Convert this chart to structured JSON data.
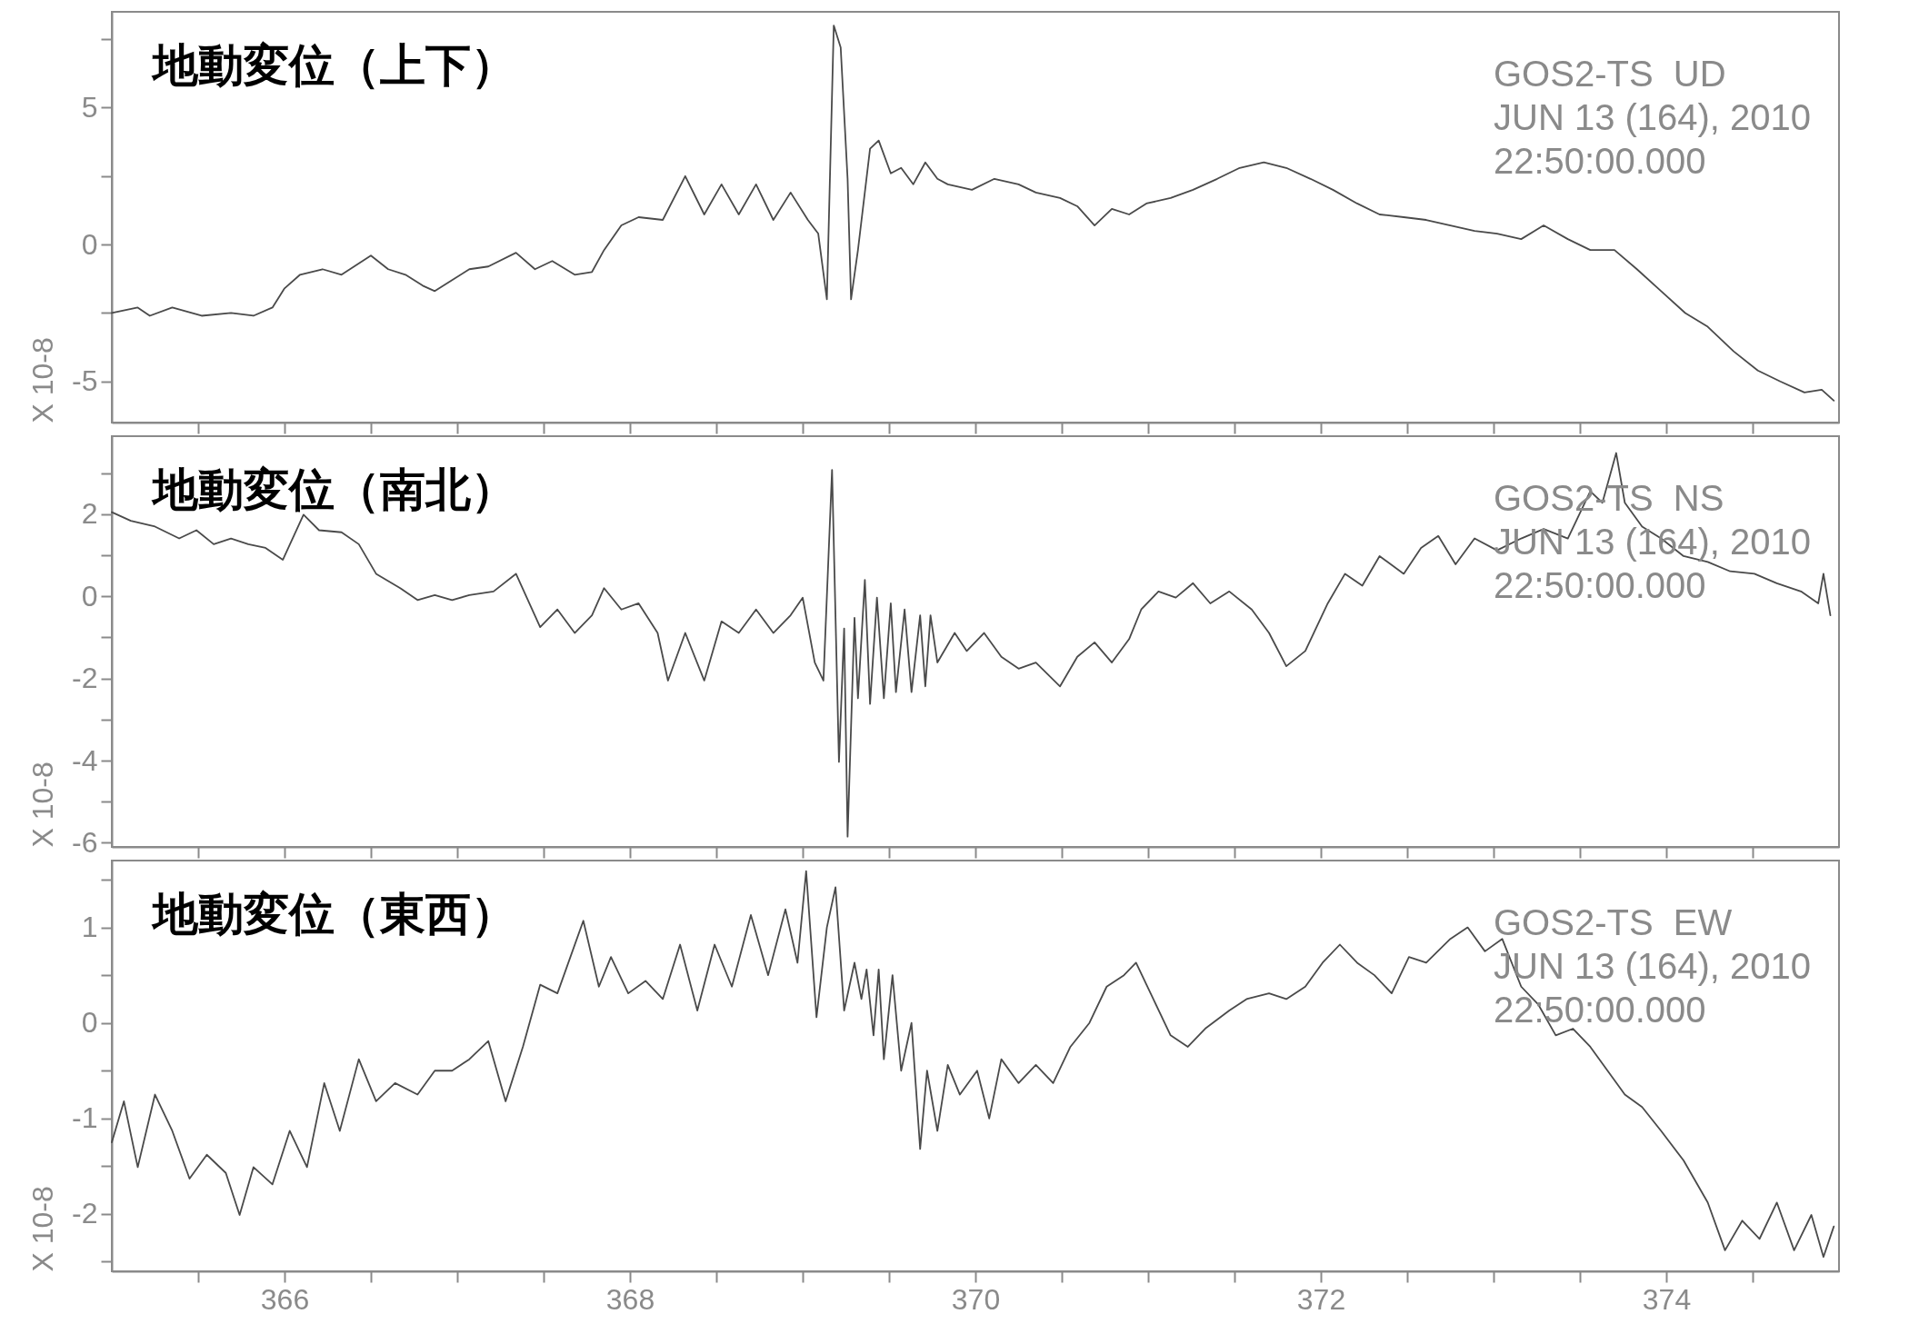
{
  "chart_data": [
    {
      "type": "line",
      "title": "地動変位（上下）",
      "ylabel": "X 10-8",
      "annotations": [
        "GOS2-TS  UD",
        "JUN 13 (164), 2010",
        "22:50:00.000"
      ],
      "xlim": [
        365,
        375
      ],
      "xticks": [
        {
          "value": 365.5,
          "label": null
        },
        366,
        {
          "value": 366.5,
          "label": null
        },
        {
          "value": 367,
          "label": null
        },
        {
          "value": 367.5,
          "label": null
        },
        368,
        {
          "value": 368.5,
          "label": null
        },
        {
          "value": 369,
          "label": null
        },
        {
          "value": 369.5,
          "label": null
        },
        370,
        {
          "value": 370.5,
          "label": null
        },
        {
          "value": 371,
          "label": null
        },
        {
          "value": 371.5,
          "label": null
        },
        372,
        {
          "value": 372.5,
          "label": null
        },
        {
          "value": 373,
          "label": null
        },
        {
          "value": 373.5,
          "label": null
        },
        374,
        {
          "value": 374.5,
          "label": null
        }
      ],
      "ylim": [
        -6.5,
        8.5
      ],
      "yticks": [
        -5,
        {
          "value": -2.5,
          "label": null
        },
        0,
        {
          "value": 2.5,
          "label": null
        },
        5,
        {
          "value": 7.5,
          "label": null
        }
      ],
      "tick_labels": "y",
      "grid": false,
      "legend": false,
      "marker": "none",
      "line_style": "solid",
      "series": [
        {
          "color": "#4a4a4a",
          "x": [
            365.0,
            365.15,
            365.22,
            365.35,
            365.52,
            365.69,
            365.82,
            365.93,
            366.0,
            366.09,
            366.22,
            366.33,
            366.5,
            366.6,
            366.7,
            366.8,
            366.87,
            366.97,
            367.07,
            367.18,
            367.34,
            367.45,
            367.55,
            367.68,
            367.78,
            367.85,
            367.95,
            368.05,
            368.19,
            368.32,
            368.43,
            368.53,
            368.63,
            368.73,
            368.83,
            368.93,
            369.03,
            369.09,
            369.14,
            369.18,
            369.22,
            369.26,
            369.28,
            369.32,
            369.39,
            369.44,
            369.51,
            369.57,
            369.64,
            369.71,
            369.78,
            369.84,
            369.98,
            370.11,
            370.25,
            370.35,
            370.49,
            370.59,
            370.69,
            370.79,
            370.89,
            370.99,
            371.13,
            371.26,
            371.4,
            371.53,
            371.67,
            371.8,
            371.94,
            372.07,
            372.21,
            372.34,
            372.48,
            372.61,
            372.75,
            372.89,
            373.02,
            373.16,
            373.29,
            373.43,
            373.56,
            373.7,
            373.83,
            373.97,
            374.11,
            374.24,
            374.39,
            374.53,
            374.66,
            374.8,
            374.9,
            374.97
          ],
          "values": [
            -2.5,
            -2.3,
            -2.6,
            -2.3,
            -2.6,
            -2.5,
            -2.6,
            -2.3,
            -1.6,
            -1.1,
            -0.9,
            -1.1,
            -0.4,
            -0.9,
            -1.1,
            -1.5,
            -1.7,
            -1.3,
            -0.9,
            -0.8,
            -0.3,
            -0.9,
            -0.6,
            -1.1,
            -1.0,
            -0.2,
            0.7,
            1.0,
            0.9,
            2.5,
            1.1,
            2.2,
            1.1,
            2.2,
            0.9,
            1.9,
            0.9,
            0.4,
            -2.0,
            8.0,
            7.2,
            2.4,
            -2.0,
            -0.2,
            3.5,
            3.8,
            2.6,
            2.8,
            2.2,
            3.0,
            2.4,
            2.2,
            2.0,
            2.4,
            2.2,
            1.9,
            1.7,
            1.4,
            0.7,
            1.3,
            1.1,
            1.5,
            1.7,
            2.0,
            2.4,
            2.8,
            3.0,
            2.8,
            2.4,
            2.0,
            1.5,
            1.1,
            1.0,
            0.9,
            0.7,
            0.5,
            0.4,
            0.2,
            0.7,
            0.2,
            -0.2,
            -0.2,
            -0.9,
            -1.7,
            -2.5,
            -3.0,
            -3.9,
            -4.6,
            -5.0,
            -5.4,
            -5.3,
            -5.7
          ]
        }
      ]
    },
    {
      "type": "line",
      "title": "地動変位（南北）",
      "ylabel": "X 10-8",
      "annotations": [
        "GOS2-TS  NS",
        "JUN 13 (164), 2010",
        "22:50:00.000"
      ],
      "xlim": [
        365,
        375
      ],
      "xticks": [
        {
          "value": 365.5,
          "label": null
        },
        366,
        {
          "value": 366.5,
          "label": null
        },
        {
          "value": 367,
          "label": null
        },
        {
          "value": 367.5,
          "label": null
        },
        368,
        {
          "value": 368.5,
          "label": null
        },
        {
          "value": 369,
          "label": null
        },
        {
          "value": 369.5,
          "label": null
        },
        370,
        {
          "value": 370.5,
          "label": null
        },
        {
          "value": 371,
          "label": null
        },
        {
          "value": 371.5,
          "label": null
        },
        372,
        {
          "value": 372.5,
          "label": null
        },
        {
          "value": 373,
          "label": null
        },
        {
          "value": 373.5,
          "label": null
        },
        374,
        {
          "value": 374.5,
          "label": null
        }
      ],
      "ylim": [
        -6.1,
        3.9
      ],
      "yticks": [
        -6,
        {
          "value": -5,
          "label": null
        },
        -4,
        {
          "value": -3,
          "label": null
        },
        -2,
        {
          "value": -1,
          "label": null
        },
        0,
        {
          "value": 1,
          "label": null
        },
        2,
        {
          "value": 3,
          "label": null
        }
      ],
      "tick_labels": "y",
      "grid": false,
      "legend": false,
      "marker": "none",
      "line_style": "solid",
      "series": [
        {
          "color": "#4a4a4a",
          "x": [
            365.0,
            365.11,
            365.25,
            365.39,
            365.49,
            365.59,
            365.69,
            365.79,
            365.89,
            365.99,
            366.11,
            366.2,
            366.33,
            366.43,
            366.53,
            366.67,
            366.77,
            366.87,
            366.97,
            367.07,
            367.21,
            367.34,
            367.48,
            367.58,
            367.68,
            367.78,
            367.85,
            367.95,
            368.05,
            368.16,
            368.22,
            368.32,
            368.43,
            368.53,
            368.63,
            368.73,
            368.83,
            368.93,
            369.0,
            369.07,
            369.12,
            369.17,
            369.21,
            369.24,
            369.26,
            369.3,
            369.32,
            369.36,
            369.39,
            369.43,
            369.47,
            369.51,
            369.54,
            369.59,
            369.63,
            369.68,
            369.71,
            369.74,
            369.78,
            369.88,
            369.95,
            370.05,
            370.15,
            370.25,
            370.35,
            370.49,
            370.59,
            370.69,
            370.79,
            370.89,
            370.96,
            371.06,
            371.16,
            371.26,
            371.36,
            371.47,
            371.6,
            371.7,
            371.8,
            371.91,
            372.04,
            372.14,
            372.24,
            372.34,
            372.48,
            372.58,
            372.68,
            372.78,
            372.89,
            373.02,
            373.16,
            373.29,
            373.43,
            373.56,
            373.63,
            373.71,
            373.76,
            373.86,
            373.97,
            374.1,
            374.24,
            374.37,
            374.51,
            374.64,
            374.78,
            374.88,
            374.91,
            374.95
          ],
          "values": [
            2.05,
            1.84,
            1.7,
            1.41,
            1.61,
            1.27,
            1.41,
            1.27,
            1.18,
            0.89,
            1.99,
            1.61,
            1.56,
            1.27,
            0.55,
            0.2,
            -0.09,
            0.03,
            -0.09,
            0.03,
            0.12,
            0.55,
            -0.75,
            -0.32,
            -0.89,
            -0.46,
            0.2,
            -0.32,
            -0.17,
            -0.89,
            -2.05,
            -0.89,
            -2.05,
            -0.61,
            -0.89,
            -0.32,
            -0.89,
            -0.46,
            -0.03,
            -1.61,
            -2.05,
            3.08,
            -4.03,
            -0.78,
            -5.85,
            -0.52,
            -2.48,
            0.4,
            -2.62,
            -0.03,
            -2.48,
            -0.17,
            -2.33,
            -0.32,
            -2.33,
            -0.46,
            -2.19,
            -0.46,
            -1.61,
            -0.89,
            -1.33,
            -0.89,
            -1.47,
            -1.76,
            -1.61,
            -2.19,
            -1.47,
            -1.12,
            -1.61,
            -1.04,
            -0.32,
            0.12,
            -0.03,
            0.32,
            -0.17,
            0.12,
            -0.32,
            -0.89,
            -1.7,
            -1.33,
            -0.17,
            0.55,
            0.26,
            0.98,
            0.55,
            1.18,
            1.47,
            0.78,
            1.41,
            1.12,
            1.41,
            1.64,
            1.41,
            2.56,
            2.28,
            3.49,
            2.28,
            1.7,
            1.41,
            0.98,
            0.84,
            0.61,
            0.55,
            0.32,
            0.12,
            -0.17,
            0.55,
            -0.46
          ]
        }
      ]
    },
    {
      "type": "line",
      "title": "地動変位（東西）",
      "ylabel": "X 10-8",
      "annotations": [
        "GOS2-TS  EW",
        "JUN 13 (164), 2010",
        "22:50:00.000"
      ],
      "xlim": [
        365,
        375
      ],
      "xticks": [
        {
          "value": 365.5,
          "label": null
        },
        366,
        {
          "value": 366.5,
          "label": null
        },
        {
          "value": 367,
          "label": null
        },
        {
          "value": 367.5,
          "label": null
        },
        368,
        {
          "value": 368.5,
          "label": null
        },
        {
          "value": 369,
          "label": null
        },
        {
          "value": 369.5,
          "label": null
        },
        370,
        {
          "value": 370.5,
          "label": null
        },
        {
          "value": 371,
          "label": null
        },
        {
          "value": 371.5,
          "label": null
        },
        372,
        {
          "value": 372.5,
          "label": null
        },
        {
          "value": 373,
          "label": null
        },
        {
          "value": 373.5,
          "label": null
        },
        374,
        {
          "value": 374.5,
          "label": null
        }
      ],
      "ylim": [
        -2.6,
        1.7
      ],
      "yticks": [
        {
          "value": -2.5,
          "label": null
        },
        -2,
        {
          "value": -1.5,
          "label": null
        },
        -1,
        {
          "value": -0.5,
          "label": null
        },
        0,
        {
          "value": 0.5,
          "label": null
        },
        1,
        {
          "value": 1.5,
          "label": null
        }
      ],
      "grid": false,
      "legend": false,
      "marker": "none",
      "line_style": "solid",
      "series": [
        {
          "color": "#4a4a4a",
          "x": [
            365.0,
            365.07,
            365.15,
            365.25,
            365.35,
            365.45,
            365.55,
            365.66,
            365.74,
            365.82,
            365.93,
            366.03,
            366.13,
            366.23,
            366.32,
            366.43,
            366.53,
            366.64,
            366.77,
            366.87,
            366.97,
            367.07,
            367.18,
            367.28,
            367.38,
            367.48,
            367.58,
            367.73,
            367.82,
            367.89,
            367.99,
            368.09,
            368.19,
            368.29,
            368.39,
            368.49,
            368.59,
            368.7,
            368.8,
            368.9,
            368.97,
            369.02,
            369.08,
            369.14,
            369.19,
            369.24,
            369.3,
            369.34,
            369.37,
            369.41,
            369.44,
            369.47,
            369.52,
            369.57,
            369.63,
            369.68,
            369.72,
            369.78,
            369.84,
            369.91,
            370.01,
            370.08,
            370.15,
            370.25,
            370.35,
            370.45,
            370.55,
            370.66,
            370.76,
            370.86,
            370.93,
            371.03,
            371.13,
            371.23,
            371.33,
            371.47,
            371.57,
            371.7,
            371.8,
            371.91,
            372.01,
            372.11,
            372.21,
            372.31,
            372.41,
            372.51,
            372.61,
            372.75,
            372.85,
            372.95,
            373.05,
            373.16,
            373.26,
            373.36,
            373.46,
            373.56,
            373.66,
            373.76,
            373.86,
            373.97,
            374.1,
            374.24,
            374.34,
            374.44,
            374.54,
            374.64,
            374.74,
            374.84,
            374.91,
            374.97
          ],
          "values": [
            -1.25,
            -0.82,
            -1.51,
            -0.75,
            -1.13,
            -1.63,
            -1.38,
            -1.57,
            -2.01,
            -1.51,
            -1.69,
            -1.13,
            -1.51,
            -0.63,
            -1.13,
            -0.38,
            -0.82,
            -0.63,
            -0.75,
            -0.5,
            -0.5,
            -0.38,
            -0.19,
            -0.82,
            -0.25,
            0.4,
            0.31,
            1.07,
            0.38,
            0.69,
            0.31,
            0.44,
            0.25,
            0.82,
            0.13,
            0.82,
            0.38,
            1.13,
            0.5,
            1.19,
            0.63,
            1.59,
            0.06,
            1.0,
            1.42,
            0.13,
            0.63,
            0.25,
            0.56,
            -0.13,
            0.56,
            -0.38,
            0.5,
            -0.5,
            0.0,
            -1.32,
            -0.5,
            -1.13,
            -0.44,
            -0.75,
            -0.5,
            -1.0,
            -0.38,
            -0.63,
            -0.44,
            -0.63,
            -0.25,
            0.0,
            0.38,
            0.5,
            0.63,
            0.25,
            -0.13,
            -0.25,
            -0.06,
            0.13,
            0.25,
            0.31,
            0.25,
            0.38,
            0.63,
            0.82,
            0.63,
            0.5,
            0.31,
            0.69,
            0.63,
            0.88,
            1.0,
            0.75,
            0.88,
            0.38,
            0.19,
            -0.13,
            -0.06,
            -0.25,
            -0.5,
            -0.75,
            -0.88,
            -1.13,
            -1.44,
            -1.88,
            -2.38,
            -2.07,
            -2.26,
            -1.88,
            -2.38,
            -2.01,
            -2.45,
            -2.13
          ]
        }
      ]
    }
  ]
}
